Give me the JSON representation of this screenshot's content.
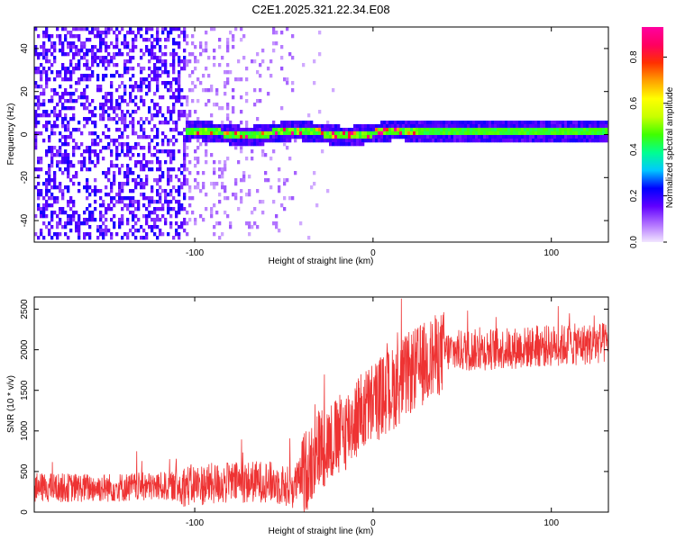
{
  "title": "C2E1.2025.321.22.34.E08",
  "chart_data": [
    {
      "type": "heatmap",
      "name": "spectrogram",
      "xlabel": "Height of straight line (km)",
      "ylabel": "Frequency (Hz)",
      "xlim": [
        -190,
        132
      ],
      "ylim": [
        -50,
        50
      ],
      "xticks": [
        -100,
        0,
        100
      ],
      "xtick_labels": [
        "-100",
        "0",
        "100"
      ],
      "yticks": [
        -40,
        -20,
        0,
        20,
        40
      ],
      "ytick_labels": [
        "-40",
        "-20",
        "0",
        "20",
        "40"
      ],
      "colorbar": {
        "label": "Normalized spectral amplitude",
        "range": [
          0,
          0.93
        ],
        "ticks": [
          0.0,
          0.2,
          0.4,
          0.6,
          0.8
        ],
        "tick_labels": [
          "0.0",
          "0.2",
          "0.4",
          "0.6",
          "0.8"
        ],
        "colors": [
          "#f2e6ff",
          "#b070ff",
          "#6000ff",
          "#0000ff",
          "#00c8ff",
          "#00ff90",
          "#40ff00",
          "#c8ff00",
          "#ffff00",
          "#ffa000",
          "#ff3000",
          "#ff0060",
          "#ff00a0"
        ]
      },
      "description_regions": [
        {
          "x_from": -190,
          "x_to": -105,
          "freq_from": -50,
          "freq_to": 50,
          "level": 0.08
        },
        {
          "x_from": -105,
          "x_to": -42,
          "freq_from": -50,
          "freq_to": 50,
          "level": 0.05
        },
        {
          "x_from": -105,
          "x_to": 132,
          "freq_from": -3,
          "freq_to": 3,
          "level": 0.4
        }
      ]
    },
    {
      "type": "line",
      "name": "snr",
      "xlabel": "Height of straight line (km)",
      "ylabel": "SNR (10 * v/v)",
      "xlim": [
        -190,
        132
      ],
      "ylim": [
        0,
        2650
      ],
      "xticks": [
        -100,
        0,
        100
      ],
      "xtick_labels": [
        "-100",
        "0",
        "100"
      ],
      "yticks": [
        0,
        500,
        1000,
        1500,
        2000,
        2500
      ],
      "ytick_labels": [
        "0",
        "500",
        "1000",
        "1500",
        "2000",
        "2500"
      ],
      "color": "#ee3333",
      "trend": {
        "x": [
          -190,
          -150,
          -110,
          -80,
          -60,
          -45,
          -38,
          -30,
          -20,
          -10,
          0,
          10,
          20,
          30,
          40,
          60,
          80,
          100,
          132
        ],
        "y": [
          300,
          300,
          320,
          360,
          380,
          300,
          500,
          800,
          900,
          1150,
          1350,
          1500,
          1700,
          1850,
          1980,
          2000,
          2020,
          2050,
          2080
        ]
      }
    }
  ]
}
